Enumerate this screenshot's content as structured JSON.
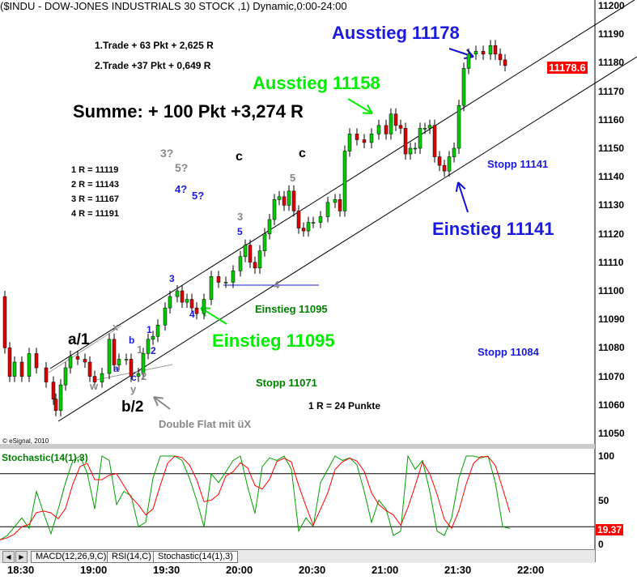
{
  "title": "($INDU - DOW-JONES INDUSTRIALS 30 STOCK ,1) Dynamic,0:00-24:00",
  "copyright": "© eSignal, 2010",
  "last_price": "11178.6",
  "stoch_label": "Stochastic(14(1),3)",
  "stoch_value": "19.37",
  "tabs": [
    "MACD(12,26,9,C)",
    "RSI(14,C)",
    "Stochastic(14(1),3)"
  ],
  "colors": {
    "up": "#00cc00",
    "down": "#e00000",
    "stoch_k": "#00a000",
    "stoch_d": "#ff0000",
    "blue": "#1010e0",
    "green": "#00ee00",
    "darkgreen": "#008000",
    "gray": "#888888"
  },
  "annotations": {
    "trade1": "1.Trade + 63 Pkt + 2,625 R",
    "trade2": "2.Trade +37 Pkt + 0,649 R",
    "summe": "Summe: + 100 Pkt +3,274 R",
    "r1": "1 R = 11119",
    "r2": "2 R = 11143",
    "r3": "3 R = 11167",
    "r4": "4 R = 11191",
    "ausstieg1": "Ausstieg 11158",
    "ausstieg2": "Ausstieg 11178",
    "einstieg1": "Einstieg 11095",
    "einstieg1_small": "Einstieg 11095",
    "einstieg2": "Einstieg 11141",
    "stopp1": "Stopp 11071",
    "stopp2": "Stopp 11084",
    "stopp3": "Stopp 11141",
    "rpunkte": "1 R = 24 Punkte",
    "double_flat": "Double Flat mit üX",
    "a1": "a/1",
    "b2": "b/2",
    "c1": "c",
    "c2": "c",
    "q3": "3?",
    "q5": "5?",
    "q4b": "4?",
    "q5b": "5?",
    "x": "x",
    "w": "w",
    "y": "y",
    "a": "a",
    "b": "b",
    "c": "c",
    "g1": "1",
    "g2": "2",
    "g3": "3",
    "g4": "4",
    "g5": "5",
    "b1": "1",
    "b2n": "2",
    "b3": "3",
    "b4": "4",
    "b5": "5"
  },
  "chart_data": [
    {
      "type": "candlestick",
      "ylim": [
        11050,
        11200
      ],
      "y_ticks": [
        11200,
        11190,
        11180,
        11170,
        11160,
        11150,
        11140,
        11130,
        11120,
        11110,
        11100,
        11090,
        11080,
        11070,
        11060,
        11050
      ],
      "x_ticks": [
        "18:30",
        "19:00",
        "19:30",
        "20:00",
        "20:30",
        "21:00",
        "21:30",
        "22:00"
      ],
      "closes": [
        [
          "18:21",
          11098
        ],
        [
          "18:23",
          11080
        ],
        [
          "18:25",
          11070
        ],
        [
          "18:27",
          11075
        ],
        [
          "18:30",
          11070
        ],
        [
          "18:33",
          11078
        ],
        [
          "18:36",
          11073
        ],
        [
          "18:40",
          11068
        ],
        [
          "18:43",
          11062
        ],
        [
          "18:44",
          11058
        ],
        [
          "18:46",
          11067
        ],
        [
          "18:48",
          11073
        ],
        [
          "18:50",
          11077
        ],
        [
          "18:53",
          11076
        ],
        [
          "18:56",
          11075
        ],
        [
          "18:58",
          11070
        ],
        [
          "19:00",
          11068
        ],
        [
          "19:03",
          11071
        ],
        [
          "19:06",
          11083
        ],
        [
          "19:08",
          11074
        ],
        [
          "19:10",
          11076
        ],
        [
          "19:13",
          11076
        ],
        [
          "19:15",
          11070
        ],
        [
          "19:18",
          11071
        ],
        [
          "19:20",
          11078
        ],
        [
          "19:22",
          11083
        ],
        [
          "19:24",
          11084
        ],
        [
          "19:26",
          11088
        ],
        [
          "19:29",
          11094
        ],
        [
          "19:31",
          11098
        ],
        [
          "19:34",
          11100
        ],
        [
          "19:36",
          11096
        ],
        [
          "19:38",
          11097
        ],
        [
          "19:40",
          11094
        ],
        [
          "19:42",
          11092
        ],
        [
          "19:45",
          11097
        ],
        [
          "19:48",
          11105
        ],
        [
          "19:51",
          11103
        ],
        [
          "19:54",
          11103
        ],
        [
          "19:57",
          11107
        ],
        [
          "20:00",
          11112
        ],
        [
          "20:02",
          11116
        ],
        [
          "20:04",
          11110
        ],
        [
          "20:06",
          11108
        ],
        [
          "20:08",
          11114
        ],
        [
          "20:10",
          11120
        ],
        [
          "20:12",
          11125
        ],
        [
          "20:14",
          11132
        ],
        [
          "20:16",
          11133
        ],
        [
          "20:18",
          11130
        ],
        [
          "20:20",
          11135
        ],
        [
          "20:22",
          11128
        ],
        [
          "20:24",
          11122
        ],
        [
          "20:26",
          11121
        ],
        [
          "20:28",
          11124
        ],
        [
          "20:30",
          11124
        ],
        [
          "20:33",
          11126
        ],
        [
          "20:36",
          11131
        ],
        [
          "20:39",
          11132
        ],
        [
          "20:41",
          11128
        ],
        [
          "20:43",
          11149
        ],
        [
          "20:45",
          11155
        ],
        [
          "20:48",
          11153
        ],
        [
          "20:51",
          11152
        ],
        [
          "20:54",
          11155
        ],
        [
          "20:57",
          11158
        ],
        [
          "21:00",
          11155
        ],
        [
          "21:02",
          11162
        ],
        [
          "21:04",
          11158
        ],
        [
          "21:06",
          11157
        ],
        [
          "21:08",
          11148
        ],
        [
          "21:10",
          11150
        ],
        [
          "21:12",
          11150
        ],
        [
          "21:14",
          11157
        ],
        [
          "21:16",
          11157
        ],
        [
          "21:18",
          11158
        ],
        [
          "21:20",
          11147
        ],
        [
          "21:22",
          11144
        ],
        [
          "21:24",
          11142
        ],
        [
          "21:26",
          11147
        ],
        [
          "21:28",
          11150
        ],
        [
          "21:30",
          11165
        ],
        [
          "21:32",
          11178
        ],
        [
          "21:34",
          11183
        ],
        [
          "21:37",
          11184
        ],
        [
          "21:40",
          11183
        ],
        [
          "21:43",
          11186
        ],
        [
          "21:45",
          11183
        ],
        [
          "21:47",
          11181
        ],
        [
          "21:49",
          11179
        ]
      ]
    },
    {
      "type": "line",
      "name": "Stochastic(14(1),3)",
      "ylim": [
        0,
        100
      ],
      "y_ticks": [
        100,
        50,
        0
      ],
      "levels": [
        80,
        20
      ],
      "k": [
        [
          "18:21",
          5
        ],
        [
          "18:24",
          10
        ],
        [
          "18:27",
          20
        ],
        [
          "18:30",
          30
        ],
        [
          "18:33",
          18
        ],
        [
          "18:36",
          60
        ],
        [
          "18:39",
          35
        ],
        [
          "18:42",
          12
        ],
        [
          "18:45",
          40
        ],
        [
          "18:48",
          70
        ],
        [
          "18:51",
          95
        ],
        [
          "18:54",
          100
        ],
        [
          "18:57",
          80
        ],
        [
          "19:00",
          40
        ],
        [
          "19:03",
          100
        ],
        [
          "19:06",
          95
        ],
        [
          "19:09",
          45
        ],
        [
          "19:12",
          60
        ],
        [
          "19:15",
          55
        ],
        [
          "19:18",
          20
        ],
        [
          "19:21",
          25
        ],
        [
          "19:24",
          75
        ],
        [
          "19:27",
          100
        ],
        [
          "19:30",
          100
        ],
        [
          "19:33",
          100
        ],
        [
          "19:36",
          95
        ],
        [
          "19:39",
          75
        ],
        [
          "19:42",
          50
        ],
        [
          "19:45",
          20
        ],
        [
          "19:48",
          80
        ],
        [
          "19:51",
          70
        ],
        [
          "19:54",
          82
        ],
        [
          "19:57",
          95
        ],
        [
          "20:00",
          100
        ],
        [
          "20:03",
          65
        ],
        [
          "20:06",
          35
        ],
        [
          "20:09",
          88
        ],
        [
          "20:12",
          98
        ],
        [
          "20:15",
          95
        ],
        [
          "20:18",
          100
        ],
        [
          "20:21",
          85
        ],
        [
          "20:24",
          15
        ],
        [
          "20:27",
          30
        ],
        [
          "20:30",
          20
        ],
        [
          "20:33",
          70
        ],
        [
          "20:36",
          85
        ],
        [
          "20:39",
          100
        ],
        [
          "20:42",
          95
        ],
        [
          "20:45",
          98
        ],
        [
          "20:48",
          90
        ],
        [
          "20:51",
          60
        ],
        [
          "20:54",
          25
        ],
        [
          "20:57",
          50
        ],
        [
          "21:00",
          40
        ],
        [
          "21:03",
          10
        ],
        [
          "21:06",
          15
        ],
        [
          "21:09",
          100
        ],
        [
          "21:12",
          85
        ],
        [
          "21:15",
          95
        ],
        [
          "21:18",
          60
        ],
        [
          "21:21",
          15
        ],
        [
          "21:24",
          10
        ],
        [
          "21:27",
          30
        ],
        [
          "21:30",
          75
        ],
        [
          "21:33",
          100
        ],
        [
          "21:36",
          100
        ],
        [
          "21:39",
          98
        ],
        [
          "21:42",
          100
        ],
        [
          "21:45",
          70
        ],
        [
          "21:48",
          20
        ],
        [
          "21:51",
          18
        ]
      ]
    }
  ]
}
